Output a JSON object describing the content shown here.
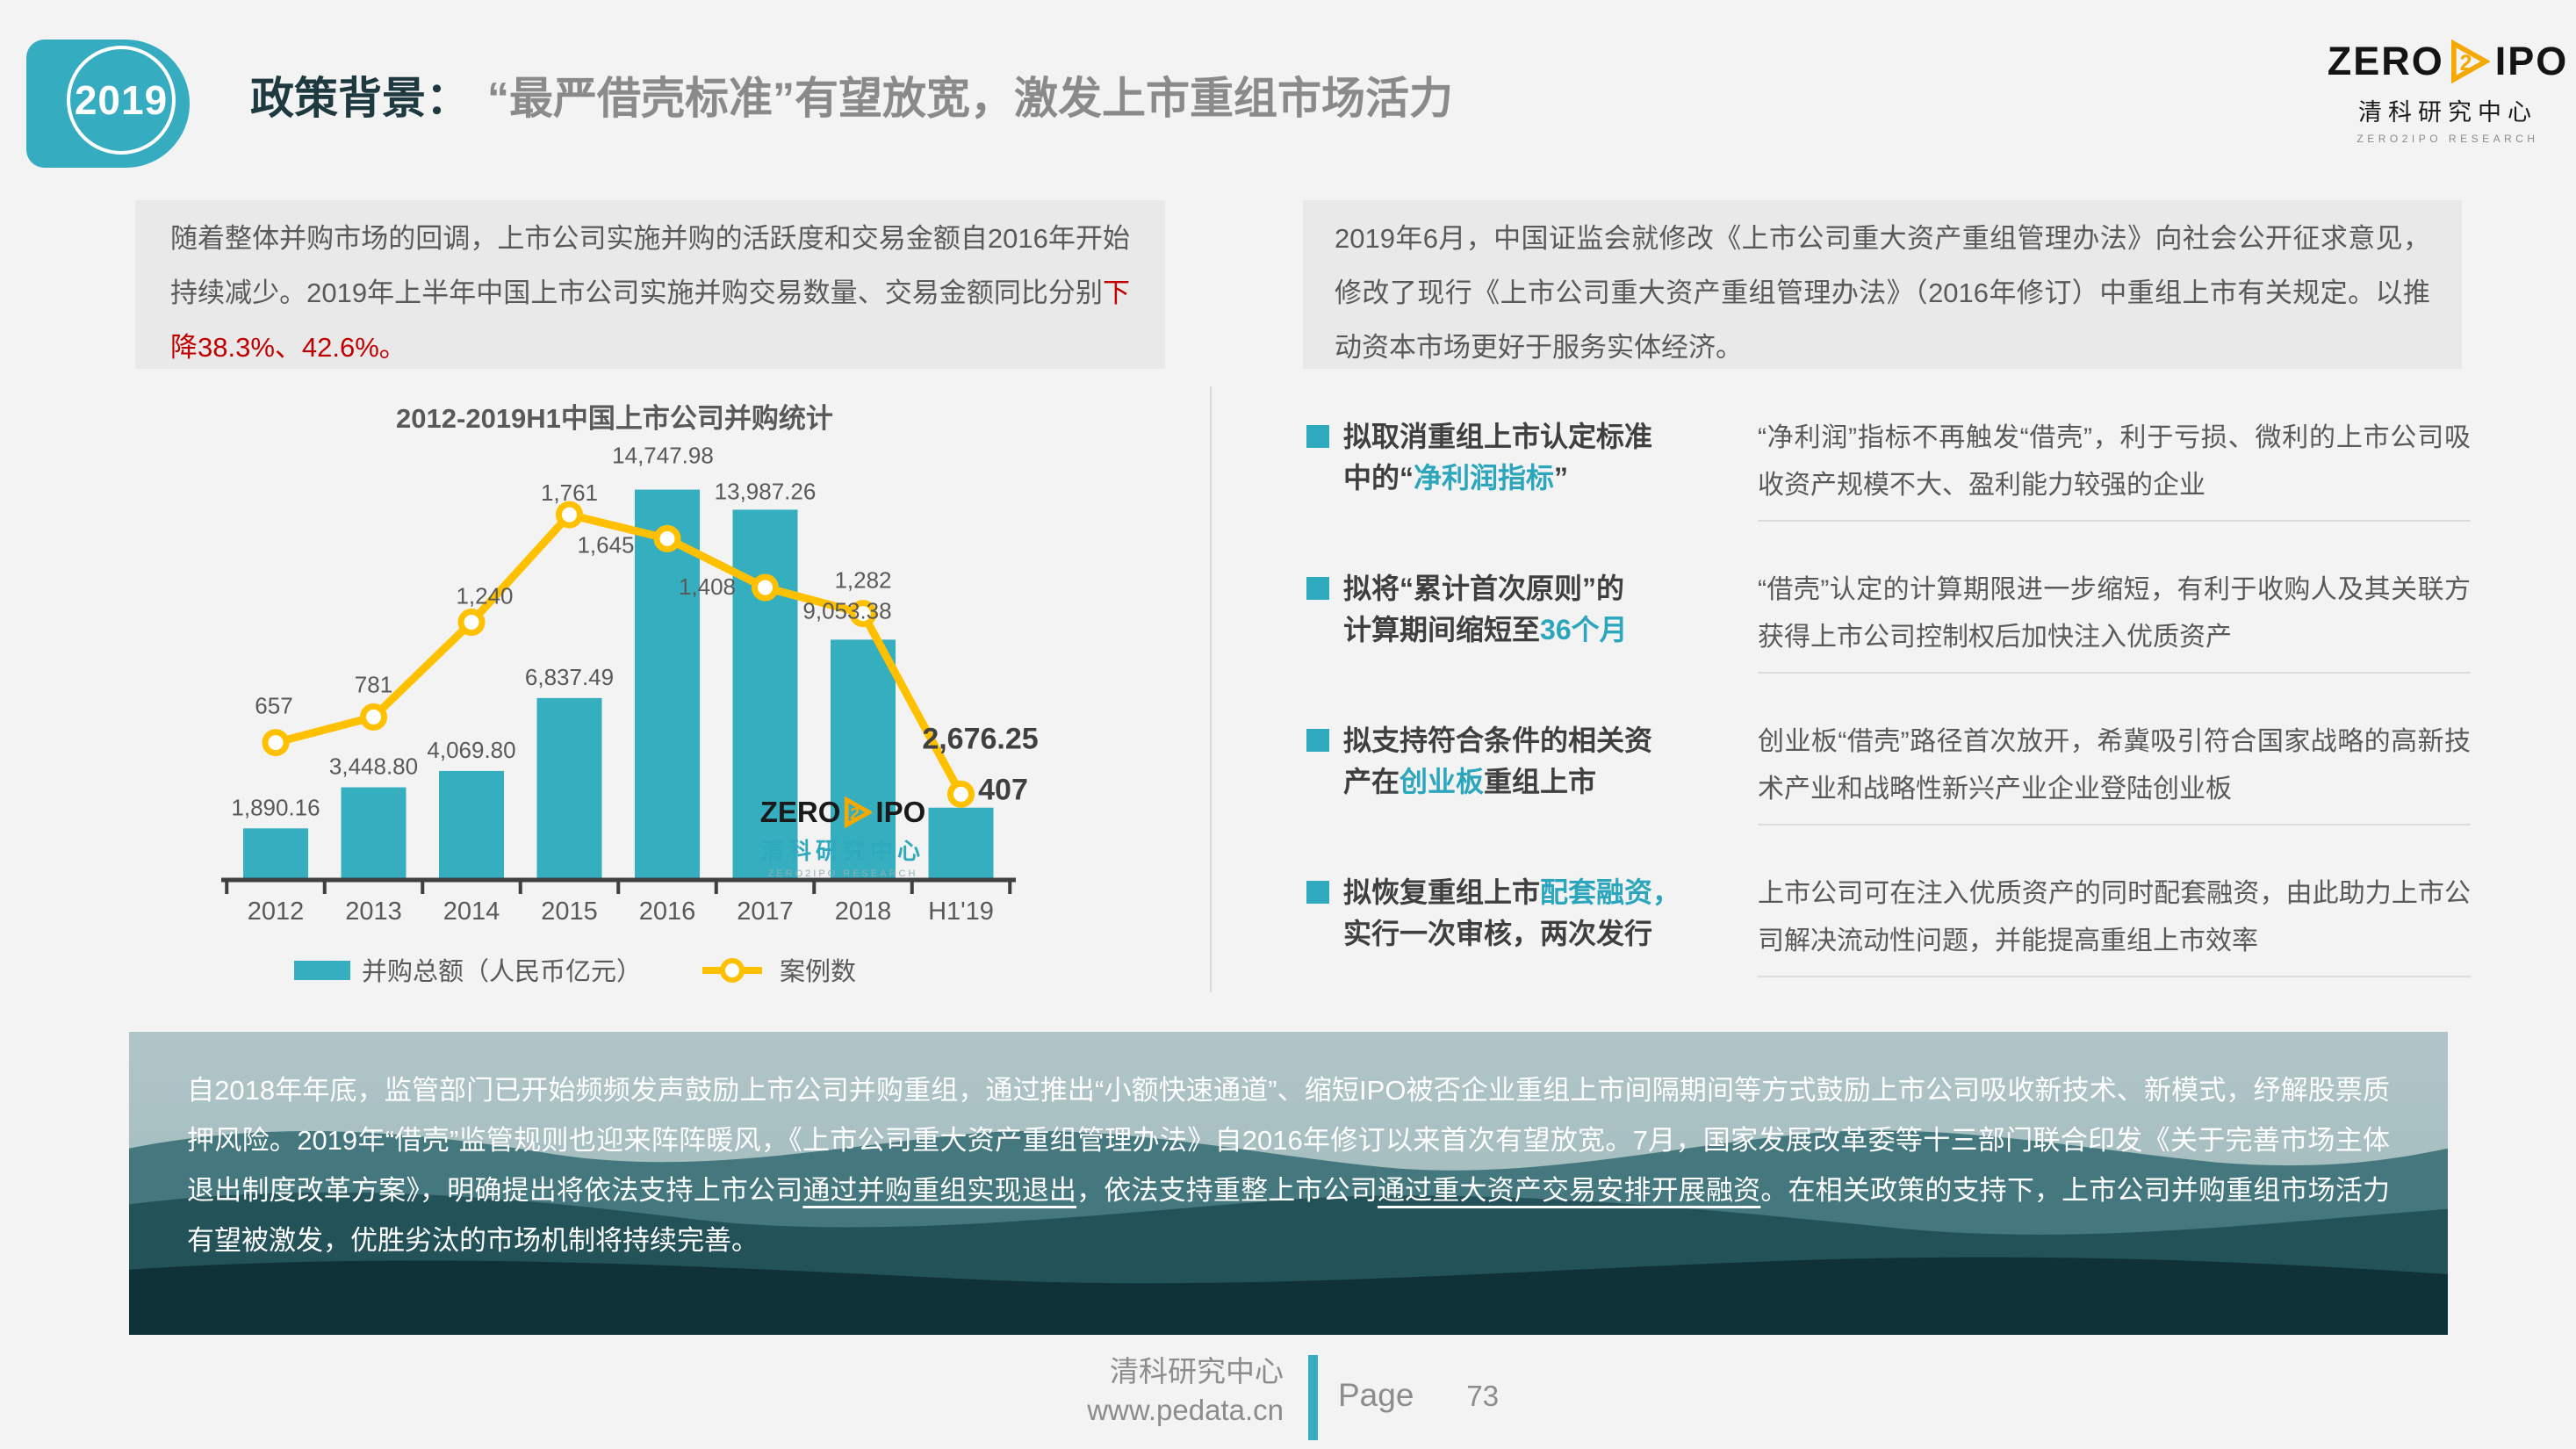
{
  "header": {
    "badge_year": "2019",
    "title_prefix": "政策背景：",
    "title_rest": "“最严借壳标准”有望放宽，激发上市重组市场活力"
  },
  "logo": {
    "zero": "ZERO",
    "two": "2",
    "ipo": "IPO",
    "cn": "清科研究中心",
    "research": "ZERO2IPO RESEARCH"
  },
  "left_panel": {
    "intro_segments": [
      {
        "t": "随着整体并购市场的回调，上市公司实施并购的活跃度和交易金额自2016年开始持续减少。2019年上半年中国上市公司实施并购交易数量、交易金额同比分别"
      },
      {
        "t": "下降38.3%、42.6%。",
        "c": "red"
      }
    ]
  },
  "chart_data": {
    "type": "bar+line",
    "title": "2012-2019H1中国上市公司并购统计",
    "categories": [
      "2012",
      "2013",
      "2014",
      "2015",
      "2016",
      "2017",
      "2018",
      "H1'19"
    ],
    "series": [
      {
        "name": "并购总额（人民币亿元）",
        "type": "bar",
        "color": "#35AEC0",
        "values": [
          1890.16,
          3448.8,
          4069.8,
          6837.49,
          14747.98,
          13987.26,
          9053.38,
          2676.25
        ],
        "labels": [
          "1,890.16",
          "3,448.80",
          "4,069.80",
          "6,837.49",
          "14,747.98",
          "13,987.26",
          "9,053.38",
          "2,676.25"
        ]
      },
      {
        "name": "案例数",
        "type": "line",
        "color": "#FFC000",
        "values": [
          657,
          781,
          1240,
          1761,
          1645,
          1408,
          1282,
          407
        ],
        "labels": [
          "657",
          "781",
          "1,240",
          "1,761",
          "1,645",
          "1,408",
          "1,282",
          "407"
        ]
      }
    ],
    "axis": {
      "bar_max": 15000,
      "line_max": 2340,
      "grid": false,
      "legend_position": "bottom"
    }
  },
  "right_panel": {
    "intro": "2019年6月，中国证监会就修改《上市公司重大资产重组管理办法》向社会公开征求意见，修改了现行《上市公司重大资产重组管理办法》（2016年修订）中重组上市有关规定。以推动资本市场更好于服务实体经济。",
    "points": [
      {
        "title_segments": [
          {
            "t": "拟取消重组上市认定标准"
          },
          {
            "br": true
          },
          {
            "t": "中的“"
          },
          {
            "t": "净利润指标",
            "c": "teal"
          },
          {
            "t": "”"
          }
        ],
        "desc": "“净利润”指标不再触发“借壳”，利于亏损、微利的上市公司吸收资产规模不大、盈利能力较强的企业"
      },
      {
        "title_segments": [
          {
            "t": "拟将“累计首次原则”的"
          },
          {
            "br": true
          },
          {
            "t": "计算期间缩短至"
          },
          {
            "t": "36个月",
            "c": "teal"
          }
        ],
        "desc": "“借壳”认定的计算期限进一步缩短，有利于收购人及其关联方获得上市公司控制权后加快注入优质资产"
      },
      {
        "title_segments": [
          {
            "t": "拟支持符合条件的相关资"
          },
          {
            "br": true
          },
          {
            "t": "产在"
          },
          {
            "t": "创业板",
            "c": "teal"
          },
          {
            "t": "重组上市"
          }
        ],
        "desc": "创业板“借壳”路径首次放开，希冀吸引符合国家战略的高新技术产业和战略性新兴产业企业登陆创业板"
      },
      {
        "title_segments": [
          {
            "t": "拟恢复重组上市"
          },
          {
            "t": "配套融资，",
            "c": "teal"
          },
          {
            "br": true
          },
          {
            "t": "实行一次审核，两次发行"
          }
        ],
        "desc": "上市公司可在注入优质资产的同时配套融资，由此助力上市公司解决流动性问题，并能提高重组上市效率"
      }
    ]
  },
  "band": {
    "segments": [
      {
        "t": "自2018年年底，监管部门已开始频频发声鼓励上市公司并购重组，通过推出“小额快速通道”、缩短IPO被否企业重组上市间隔期间等方式鼓励上市公司吸收新技术、新模式，纾解股票质押风险。2019年“借壳”监管规则也迎来阵阵暖风，《上市公司重大资产重组管理办法》自2016年修订以来首次有望放宽。7月，国家发展改革委等十三部门联合印发《关于完善市场主体退出制度改革方案》，明确提出将依法支持上市公司"
      },
      {
        "t": "通过并购重组实现退出",
        "u": true
      },
      {
        "t": "，依法支持重整上市公司"
      },
      {
        "t": "通过重大资产交易安排开展融资",
        "u": true
      },
      {
        "t": "。在相关政策的支持下，上市公司并购重组市场活力有望被激发，优胜劣汰的市场机制将持续完善。"
      }
    ]
  },
  "footer": {
    "org": "清科研究中心",
    "site": "www.pedata.cn",
    "page_label": "Page",
    "page_number": "73"
  },
  "colors": {
    "teal": "#35ACC0",
    "gold": "#FFC000",
    "red": "#C00000",
    "dark_title": "#1E3A40",
    "gray_title": "#8A8A8A",
    "box_bg": "#E9E9E9"
  }
}
